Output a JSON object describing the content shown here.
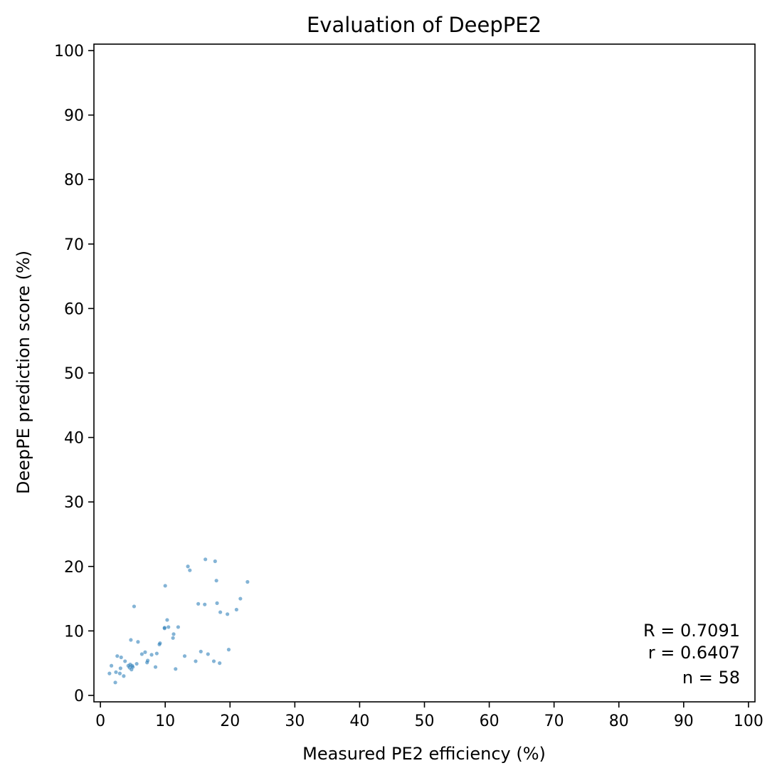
{
  "chart_data": {
    "type": "scatter",
    "title": "Evaluation of DeepPE2",
    "xlabel": "Measured PE2 efficiency (%)",
    "ylabel": "DeepPE prediction score (%)",
    "xlim": [
      -1,
      101
    ],
    "ylim": [
      -1,
      101
    ],
    "xticks": [
      0,
      10,
      20,
      30,
      40,
      50,
      60,
      70,
      80,
      90,
      100
    ],
    "yticks": [
      0,
      10,
      20,
      30,
      40,
      50,
      60,
      70,
      80,
      90,
      100
    ],
    "xtick_labels": [
      "0",
      "10",
      "20",
      "30",
      "40",
      "50",
      "60",
      "70",
      "80",
      "90",
      "100"
    ],
    "ytick_labels": [
      "0",
      "10",
      "20",
      "30",
      "40",
      "50",
      "60",
      "70",
      "80",
      "90",
      "100"
    ],
    "grid": false,
    "point_color": "#1f77b4",
    "stats": {
      "R": "R = 0.7091",
      "r": "r = 0.6407",
      "n": "n = 58"
    },
    "points": [
      {
        "x": 1.4,
        "y": 3.4
      },
      {
        "x": 1.7,
        "y": 4.6
      },
      {
        "x": 2.3,
        "y": 2.0
      },
      {
        "x": 2.4,
        "y": 3.6
      },
      {
        "x": 2.6,
        "y": 6.1
      },
      {
        "x": 3.0,
        "y": 3.4
      },
      {
        "x": 3.1,
        "y": 4.2
      },
      {
        "x": 3.2,
        "y": 5.9
      },
      {
        "x": 3.6,
        "y": 3.0
      },
      {
        "x": 3.8,
        "y": 5.3
      },
      {
        "x": 4.3,
        "y": 4.6
      },
      {
        "x": 4.5,
        "y": 4.3
      },
      {
        "x": 4.6,
        "y": 4.8
      },
      {
        "x": 4.7,
        "y": 8.6
      },
      {
        "x": 4.8,
        "y": 4.0
      },
      {
        "x": 5.0,
        "y": 4.4
      },
      {
        "x": 5.2,
        "y": 13.8
      },
      {
        "x": 5.6,
        "y": 4.9
      },
      {
        "x": 5.8,
        "y": 8.3
      },
      {
        "x": 6.4,
        "y": 6.4
      },
      {
        "x": 6.9,
        "y": 6.7
      },
      {
        "x": 7.2,
        "y": 5.1
      },
      {
        "x": 7.3,
        "y": 5.4
      },
      {
        "x": 7.9,
        "y": 6.3
      },
      {
        "x": 8.5,
        "y": 4.4
      },
      {
        "x": 8.7,
        "y": 6.5
      },
      {
        "x": 9.1,
        "y": 7.9
      },
      {
        "x": 9.2,
        "y": 8.1
      },
      {
        "x": 9.9,
        "y": 10.5
      },
      {
        "x": 10.0,
        "y": 17.0
      },
      {
        "x": 10.3,
        "y": 11.7
      },
      {
        "x": 10.5,
        "y": 10.6
      },
      {
        "x": 11.2,
        "y": 8.9
      },
      {
        "x": 11.3,
        "y": 9.5
      },
      {
        "x": 11.6,
        "y": 4.1
      },
      {
        "x": 12.0,
        "y": 10.6
      },
      {
        "x": 13.0,
        "y": 6.1
      },
      {
        "x": 13.5,
        "y": 20.0
      },
      {
        "x": 13.8,
        "y": 19.4
      },
      {
        "x": 14.7,
        "y": 5.3
      },
      {
        "x": 15.1,
        "y": 14.2
      },
      {
        "x": 15.5,
        "y": 6.8
      },
      {
        "x": 16.1,
        "y": 14.1
      },
      {
        "x": 16.2,
        "y": 21.1
      },
      {
        "x": 16.6,
        "y": 6.4
      },
      {
        "x": 17.5,
        "y": 5.3
      },
      {
        "x": 17.7,
        "y": 20.8
      },
      {
        "x": 17.9,
        "y": 17.8
      },
      {
        "x": 18.0,
        "y": 14.3
      },
      {
        "x": 18.4,
        "y": 5.0
      },
      {
        "x": 18.5,
        "y": 12.9
      },
      {
        "x": 19.6,
        "y": 12.6
      },
      {
        "x": 19.8,
        "y": 7.1
      },
      {
        "x": 21.0,
        "y": 13.3
      },
      {
        "x": 21.6,
        "y": 15.0
      },
      {
        "x": 22.7,
        "y": 17.6
      },
      {
        "x": 9.9,
        "y": 10.4
      },
      {
        "x": 4.9,
        "y": 4.6
      }
    ]
  }
}
